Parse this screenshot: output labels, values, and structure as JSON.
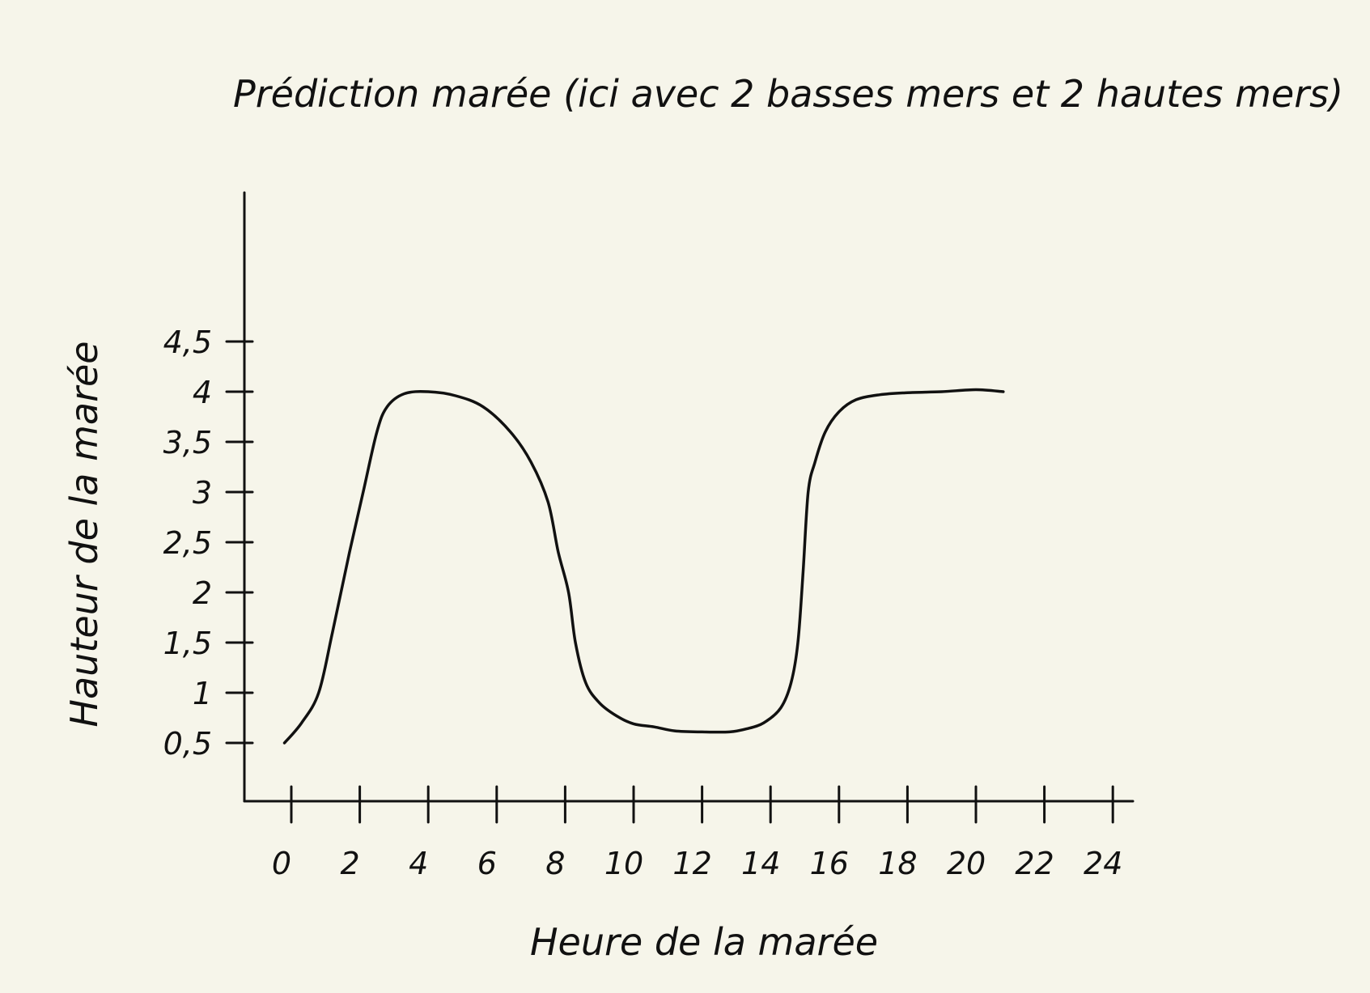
{
  "chart_data": {
    "type": "line",
    "title": "Prédiction marée (ici avec 2 basses mers et 2 hautes mers)",
    "xlabel": "Heure de la marée",
    "ylabel": "Hauteur de la marée",
    "x_ticks": [
      0,
      2,
      4,
      6,
      8,
      10,
      12,
      14,
      16,
      18,
      20,
      22,
      24
    ],
    "x_tick_labels": [
      "0",
      "2",
      "4",
      "6",
      "8",
      "10",
      "12",
      "14",
      "16",
      "18",
      "20",
      "22",
      "24"
    ],
    "y_ticks": [
      0.5,
      1,
      1.5,
      2,
      2.5,
      3,
      3.5,
      4,
      4.5
    ],
    "y_tick_labels": [
      "0,5",
      "1",
      "1,5",
      "2",
      "2,5",
      "3",
      "3,5",
      "4",
      "4,5"
    ],
    "xlim": [
      -1.4,
      24
    ],
    "ylim": [
      0.15,
      4.5
    ],
    "grid": false,
    "legend": "none",
    "series": [
      {
        "x": [
          -0.2,
          0.3,
          0.8,
          1.2,
          1.7,
          2.1,
          2.5,
          2.8,
          3.3,
          4.0,
          4.8,
          5.6,
          6.4,
          7.0,
          7.5,
          7.8,
          8.1,
          8.3,
          8.6,
          9.0,
          9.5,
          10.0,
          10.6,
          11.2,
          12.0,
          12.8,
          13.3,
          13.8,
          14.3,
          14.6,
          14.8,
          14.95,
          15.1,
          15.3,
          15.6,
          16.0,
          16.5,
          17.2,
          18.0,
          19.0,
          20.0,
          20.8
        ],
        "y": [
          0.5,
          0.7,
          1.0,
          1.6,
          2.4,
          3.0,
          3.6,
          3.85,
          3.98,
          4.0,
          3.96,
          3.85,
          3.6,
          3.3,
          2.9,
          2.4,
          2.0,
          1.5,
          1.1,
          0.9,
          0.77,
          0.69,
          0.66,
          0.62,
          0.61,
          0.61,
          0.64,
          0.7,
          0.85,
          1.1,
          1.5,
          2.2,
          3.0,
          3.3,
          3.6,
          3.8,
          3.92,
          3.97,
          3.99,
          4.0,
          4.02,
          4.0
        ]
      }
    ]
  }
}
